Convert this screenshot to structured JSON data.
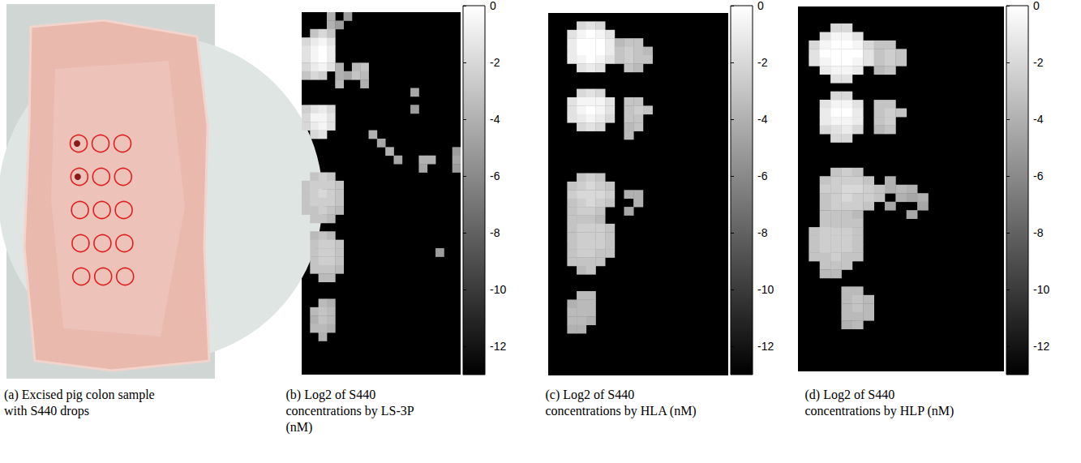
{
  "chart_data": [
    {
      "type": "photo",
      "caption": "(a) Excised pig colon sample with S440 drops",
      "drops": {
        "rows": 5,
        "columns": 3,
        "color": "#e02020"
      }
    },
    {
      "type": "heatmap",
      "caption": "(b) Log2 of S440 concentrations by LS-3P (nM)",
      "xlim": [
        0,
        19
      ],
      "ylim": [
        0,
        43
      ],
      "tick_labels": false,
      "cell_rows": [
        [
          0,
          3,
          [
            -4
          ]
        ],
        [
          0,
          5,
          [
            -5
          ]
        ],
        [
          1,
          3,
          [
            -4,
            -5
          ]
        ],
        [
          2,
          1,
          [
            -3,
            -2,
            -3
          ]
        ],
        [
          3,
          0,
          [
            -2,
            -1,
            -0.5,
            -1.5
          ]
        ],
        [
          4,
          0,
          [
            -1.5,
            -0.5,
            0,
            -1
          ]
        ],
        [
          5,
          0,
          [
            -1.5,
            -0.5,
            0,
            -1
          ]
        ],
        [
          6,
          0,
          [
            -2,
            -1,
            -0.5,
            -1.5
          ]
        ],
        [
          6,
          4,
          [
            -4
          ]
        ],
        [
          6,
          6,
          [
            -3.5,
            -3
          ]
        ],
        [
          7,
          0,
          [
            -3,
            -2,
            -2.5
          ]
        ],
        [
          7,
          4,
          [
            -4,
            -4.5
          ]
        ],
        [
          7,
          6,
          [
            -3,
            -3.5
          ]
        ],
        [
          8,
          4,
          [
            -3.5
          ]
        ],
        [
          8,
          7,
          [
            -4
          ]
        ],
        [
          9,
          13,
          [
            -4.5
          ]
        ],
        [
          11,
          0,
          [
            -2.5,
            -1.5,
            -1,
            -2
          ]
        ],
        [
          11,
          13,
          [
            -5
          ]
        ],
        [
          12,
          0,
          [
            -2,
            -0.5,
            -0.5,
            -1.5
          ]
        ],
        [
          13,
          0,
          [
            -2,
            -1,
            -0.5,
            -1.5
          ]
        ],
        [
          14,
          1,
          [
            -2,
            -1.5
          ]
        ],
        [
          14,
          8,
          [
            -4
          ]
        ],
        [
          15,
          9,
          [
            -4.5
          ]
        ],
        [
          16,
          10,
          [
            -4
          ]
        ],
        [
          16,
          18,
          [
            -5
          ]
        ],
        [
          17,
          11,
          [
            -4.5
          ]
        ],
        [
          17,
          14,
          [
            -4,
            -4
          ]
        ],
        [
          17,
          18,
          [
            -4.5
          ]
        ],
        [
          18,
          14,
          [
            -4.5
          ]
        ],
        [
          18,
          18,
          [
            -5
          ]
        ],
        [
          19,
          1,
          [
            -3,
            -2.5,
            -3
          ]
        ],
        [
          20,
          0,
          [
            -3,
            -2.5,
            -2.5,
            -2.5,
            -3
          ]
        ],
        [
          21,
          0,
          [
            -3,
            -2.5,
            -2,
            -2.5,
            -3
          ]
        ],
        [
          22,
          0,
          [
            -3,
            -2.5,
            -2.5,
            -2.5,
            -3
          ]
        ],
        [
          23,
          0,
          [
            -3,
            -3,
            -2.5,
            -3,
            -3.5
          ]
        ],
        [
          24,
          1,
          [
            -3,
            -3,
            -3.5
          ]
        ],
        [
          26,
          1,
          [
            -3.5,
            -3,
            -3.5
          ]
        ],
        [
          27,
          1,
          [
            -3,
            -2.5,
            -2.5,
            -3
          ]
        ],
        [
          28,
          1,
          [
            -3,
            -2.5,
            -2.5,
            -3
          ]
        ],
        [
          28,
          16,
          [
            -5
          ]
        ],
        [
          29,
          1,
          [
            -3,
            -2.5,
            -2.5,
            -3
          ]
        ],
        [
          30,
          1,
          [
            -3,
            -3,
            -3,
            -3.5
          ]
        ],
        [
          31,
          2,
          [
            -3.5,
            -3.5
          ]
        ],
        [
          34,
          2,
          [
            -3.5,
            -4
          ]
        ],
        [
          35,
          1,
          [
            -3.5,
            -3,
            -3.5
          ]
        ],
        [
          36,
          1,
          [
            -4,
            -3,
            -3.5
          ]
        ],
        [
          37,
          1,
          [
            -3.5,
            -3.5,
            -4
          ]
        ],
        [
          38,
          2,
          [
            -4
          ]
        ]
      ],
      "colorbar": {
        "range": [
          -13,
          0
        ],
        "ticks": [
          0,
          -2,
          -4,
          -6,
          -8,
          -10,
          -12
        ]
      }
    },
    {
      "type": "heatmap",
      "caption": "(c) Log2 of S440 concentrations by HLA (nM)",
      "xlim": [
        0,
        19
      ],
      "ylim": [
        0,
        43
      ],
      "tick_labels": false,
      "cell_rows": [
        [
          1,
          3,
          [
            -2,
            -1.5,
            -2
          ]
        ],
        [
          2,
          2,
          [
            -1.5,
            -0.5,
            0,
            -0.5,
            -1.5
          ]
        ],
        [
          3,
          2,
          [
            -1,
            0,
            0,
            0,
            -1
          ]
        ],
        [
          3,
          7,
          [
            -3.5,
            -3,
            -3
          ]
        ],
        [
          4,
          2,
          [
            -1,
            0,
            0,
            0,
            -1
          ]
        ],
        [
          4,
          7,
          [
            -3,
            -2.5,
            -3,
            -3.5
          ]
        ],
        [
          5,
          2,
          [
            -1,
            -0.5,
            0,
            -0.5,
            -1.5
          ]
        ],
        [
          5,
          7,
          [
            -3,
            -2.5,
            -3,
            -3
          ]
        ],
        [
          6,
          3,
          [
            -1.5,
            -1,
            -1.5
          ]
        ],
        [
          6,
          8,
          [
            -3,
            -3.5
          ]
        ],
        [
          9,
          3,
          [
            -2,
            -1.5,
            -2
          ]
        ],
        [
          10,
          2,
          [
            -1.5,
            -0.5,
            -0.5,
            -0.5,
            -1.5
          ]
        ],
        [
          10,
          8,
          [
            -3,
            -3
          ]
        ],
        [
          11,
          2,
          [
            -1.5,
            -0.5,
            0,
            -0.5,
            -1.5
          ]
        ],
        [
          11,
          8,
          [
            -3,
            -2.5,
            -3
          ]
        ],
        [
          12,
          2,
          [
            -1.5,
            -1,
            -0.5,
            -1,
            -2
          ]
        ],
        [
          12,
          8,
          [
            -3,
            -3
          ]
        ],
        [
          13,
          3,
          [
            -2,
            -1.5,
            -2
          ]
        ],
        [
          13,
          8,
          [
            -3.5,
            -3
          ]
        ],
        [
          14,
          8,
          [
            -3.5
          ]
        ],
        [
          19,
          3,
          [
            -3,
            -2.5,
            -3
          ]
        ],
        [
          20,
          2,
          [
            -3,
            -2.5,
            -2,
            -2.5,
            -3
          ]
        ],
        [
          21,
          2,
          [
            -2.5,
            -2,
            -2,
            -2,
            -2.5
          ]
        ],
        [
          21,
          8,
          [
            -4,
            -4
          ]
        ],
        [
          22,
          2,
          [
            -3,
            -2.5,
            -2,
            -2.5,
            -3
          ]
        ],
        [
          22,
          9,
          [
            -4
          ]
        ],
        [
          23,
          2,
          [
            -3,
            -2.5,
            -2.5,
            -3
          ]
        ],
        [
          23,
          8,
          [
            -4.5
          ]
        ],
        [
          24,
          2,
          [
            -3,
            -3,
            -3,
            -3.5
          ]
        ],
        [
          25,
          2,
          [
            -3,
            -2.5,
            -2.5,
            -2.5,
            -3
          ]
        ],
        [
          26,
          2,
          [
            -3,
            -2.5,
            -2.5,
            -2.5,
            -3
          ]
        ],
        [
          27,
          2,
          [
            -3,
            -2.5,
            -2.5,
            -2.5,
            -3
          ]
        ],
        [
          28,
          2,
          [
            -3,
            -2.5,
            -2.5,
            -3,
            -3
          ]
        ],
        [
          29,
          2,
          [
            -3,
            -3,
            -3,
            -3
          ]
        ],
        [
          30,
          3,
          [
            -3.5,
            -3
          ]
        ],
        [
          33,
          3,
          [
            -3.5,
            -3.5
          ]
        ],
        [
          34,
          2,
          [
            -4,
            -3.5,
            -3.5
          ]
        ],
        [
          35,
          2,
          [
            -3.5,
            -3.5,
            -3.5
          ]
        ],
        [
          36,
          2,
          [
            -3.5,
            -3.5,
            -4
          ]
        ],
        [
          37,
          2,
          [
            -4,
            -4
          ]
        ]
      ],
      "colorbar": {
        "range": [
          -13,
          0
        ],
        "ticks": [
          0,
          -2,
          -4,
          -6,
          -8,
          -10,
          -12
        ]
      }
    },
    {
      "type": "heatmap",
      "caption": "(d) Log2 of S440 concentrations by HLP (nM)",
      "xlim": [
        0,
        19
      ],
      "ylim": [
        0,
        43
      ],
      "tick_labels": false,
      "cell_rows": [
        [
          2,
          3,
          [
            -2,
            -2
          ]
        ],
        [
          3,
          2,
          [
            -1.5,
            -0.5,
            -0.5,
            -1.5
          ]
        ],
        [
          4,
          1,
          [
            -2,
            -0.5,
            0,
            0,
            -0.5,
            -2
          ]
        ],
        [
          4,
          7,
          [
            -3,
            -3
          ]
        ],
        [
          5,
          1,
          [
            -1.5,
            0,
            0,
            0,
            0,
            -1.5
          ]
        ],
        [
          5,
          7,
          [
            -3,
            -2.5,
            -3
          ]
        ],
        [
          6,
          1,
          [
            -1.5,
            -0.5,
            0,
            0,
            -0.5,
            -1.5
          ]
        ],
        [
          6,
          7,
          [
            -3,
            -2.5,
            -3
          ]
        ],
        [
          7,
          2,
          [
            -1,
            -0.5,
            -0.5,
            -1
          ]
        ],
        [
          7,
          7,
          [
            -3.5,
            -3
          ]
        ],
        [
          8,
          3,
          [
            -1.5,
            -1.5
          ]
        ],
        [
          10,
          3,
          [
            -2,
            -2
          ]
        ],
        [
          11,
          2,
          [
            -1.5,
            -0.5,
            -0.5,
            -1.5
          ]
        ],
        [
          11,
          7,
          [
            -3,
            -3
          ]
        ],
        [
          12,
          2,
          [
            -1,
            0,
            0,
            -1
          ]
        ],
        [
          12,
          7,
          [
            -3,
            -2.5,
            -3
          ]
        ],
        [
          13,
          2,
          [
            -1,
            -0.5,
            -0.5,
            -1
          ]
        ],
        [
          13,
          7,
          [
            -3,
            -2.5
          ]
        ],
        [
          14,
          2,
          [
            -2,
            -1.5,
            -1,
            -2
          ]
        ],
        [
          14,
          7,
          [
            -3.5,
            -3
          ]
        ],
        [
          15,
          3,
          [
            -2,
            -2
          ]
        ],
        [
          19,
          3,
          [
            -3,
            -2.5,
            -3
          ]
        ],
        [
          20,
          2,
          [
            -3,
            -2.5,
            -2.5,
            -2.5,
            -3
          ]
        ],
        [
          20,
          8,
          [
            -4
          ]
        ],
        [
          21,
          2,
          [
            -2.5,
            -2.5,
            -2,
            -2,
            -2.5,
            -3
          ]
        ],
        [
          21,
          8,
          [
            -4,
            -3.5,
            -4
          ]
        ],
        [
          22,
          2,
          [
            -3,
            -2.5,
            -2,
            -2.5,
            -2.5,
            -3
          ]
        ],
        [
          22,
          9,
          [
            -4,
            -4.5,
            -4
          ]
        ],
        [
          23,
          2,
          [
            -3,
            -2.5,
            -2.5,
            -2.5,
            -3
          ]
        ],
        [
          23,
          8,
          [
            -4.5
          ]
        ],
        [
          23,
          11,
          [
            -4.5
          ]
        ],
        [
          24,
          2,
          [
            -3,
            -3,
            -3,
            -3.5
          ]
        ],
        [
          24,
          10,
          [
            -4.5
          ]
        ],
        [
          25,
          2,
          [
            -3,
            -3,
            -3,
            -3
          ]
        ],
        [
          26,
          1,
          [
            -3,
            -2.5,
            -2.5,
            -2.5,
            -3
          ]
        ],
        [
          27,
          1,
          [
            -3,
            -2.5,
            -2.5,
            -2.5,
            -3
          ]
        ],
        [
          28,
          1,
          [
            -3,
            -2.5,
            -2.5,
            -2.5,
            -3
          ]
        ],
        [
          29,
          1,
          [
            -3,
            -3,
            -2.5,
            -3,
            -3
          ]
        ],
        [
          30,
          2,
          [
            -3,
            -3,
            -3
          ]
        ],
        [
          31,
          2,
          [
            -3.5,
            -3.5
          ]
        ],
        [
          33,
          4,
          [
            -3.5,
            -3.5
          ]
        ],
        [
          34,
          4,
          [
            -3.5,
            -3,
            -3.5
          ]
        ],
        [
          35,
          4,
          [
            -3.5,
            -3,
            -3.5
          ]
        ],
        [
          36,
          4,
          [
            -3.5,
            -3.5,
            -3.5
          ]
        ],
        [
          37,
          4,
          [
            -4,
            -3.5
          ]
        ]
      ],
      "colorbar": {
        "range": [
          -13,
          0
        ],
        "ticks": [
          0,
          -2,
          -4,
          -6,
          -8,
          -10,
          -12
        ]
      }
    }
  ]
}
